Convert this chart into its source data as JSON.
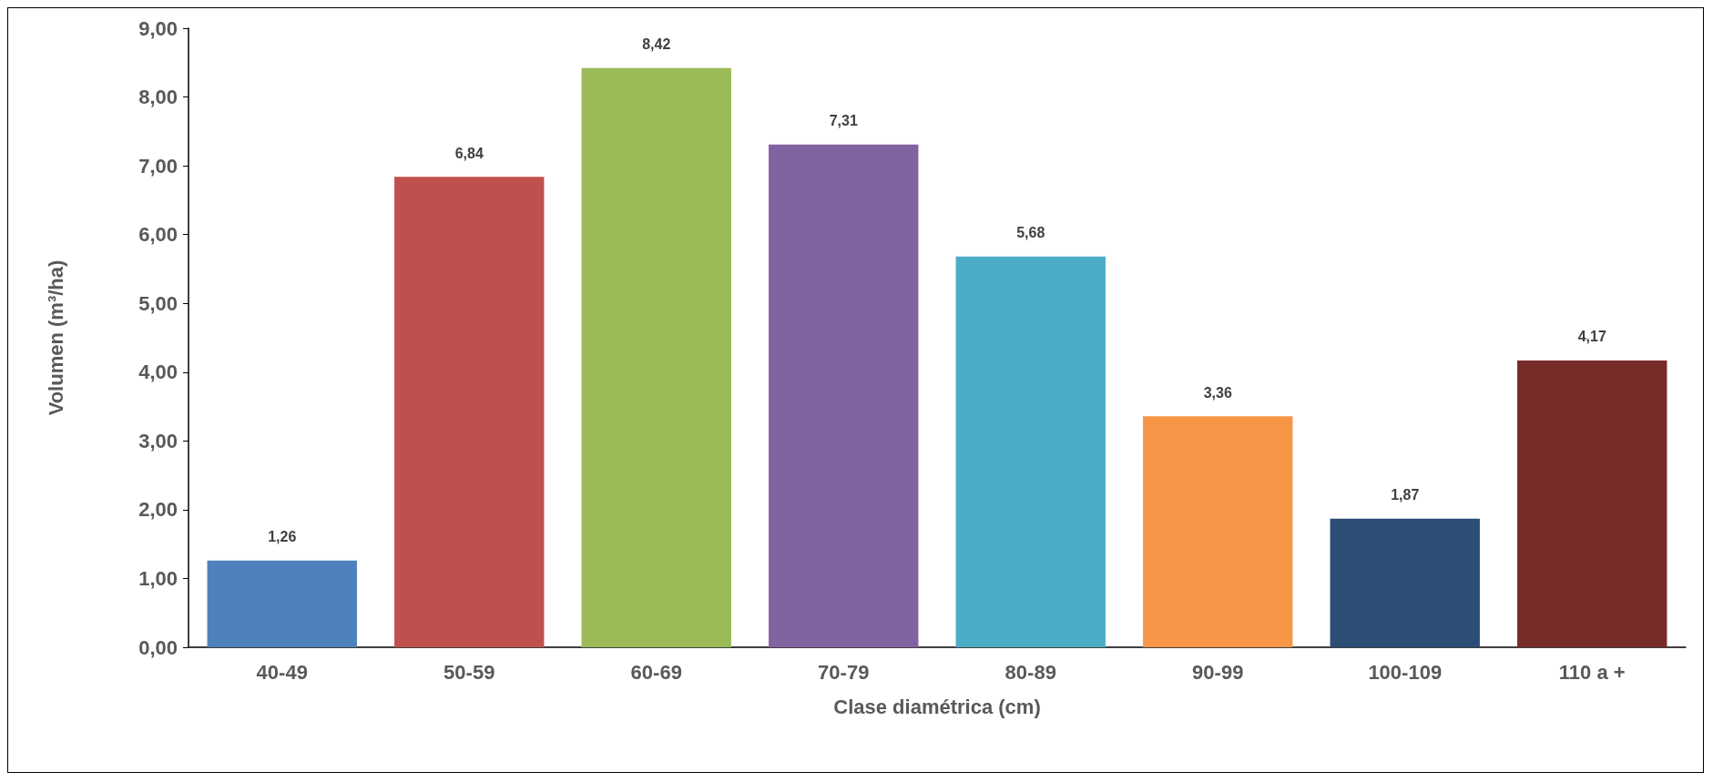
{
  "chart_data": {
    "type": "bar",
    "xlabel": "Clase diamétrica (cm)",
    "ylabel": "Volumen (m³/ha)",
    "categories": [
      "40-49",
      "50-59",
      "60-69",
      "70-79",
      "80-89",
      "90-99",
      "100-109",
      "110 a +"
    ],
    "values": [
      1.26,
      6.84,
      8.42,
      7.31,
      5.68,
      3.36,
      1.87,
      4.17
    ],
    "value_labels": [
      "1,26",
      "6,84",
      "8,42",
      "7,31",
      "5,68",
      "3,36",
      "1,87",
      "4,17"
    ],
    "colors": [
      "#4f81bd",
      "#c0504d",
      "#9bbb59",
      "#8064a2",
      "#4bacc6",
      "#f79646",
      "#2c4d75",
      "#772c2a"
    ],
    "ylim": [
      0,
      9
    ],
    "yticks": [
      {
        "value": 0,
        "label": "0,00"
      },
      {
        "value": 1,
        "label": "1,00"
      },
      {
        "value": 2,
        "label": "2,00"
      },
      {
        "value": 3,
        "label": "3,00"
      },
      {
        "value": 4,
        "label": "4,00"
      },
      {
        "value": 5,
        "label": "5,00"
      },
      {
        "value": 6,
        "label": "6,00"
      },
      {
        "value": 7,
        "label": "7,00"
      },
      {
        "value": 8,
        "label": "8,00"
      },
      {
        "value": 9,
        "label": "9,00"
      }
    ],
    "grid": false
  }
}
